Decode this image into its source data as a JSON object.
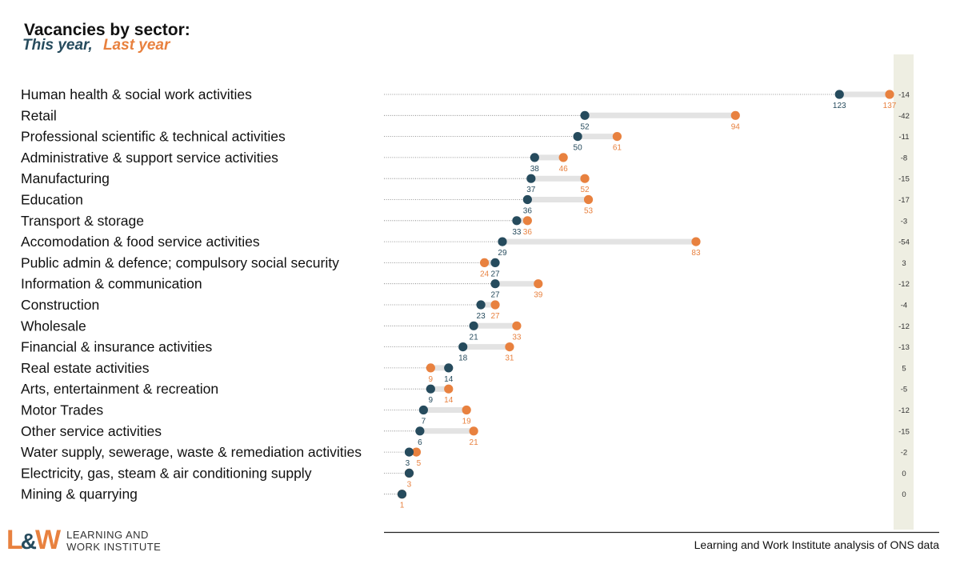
{
  "header": {
    "title": "Vacancies by sector:",
    "this_year": "This year,",
    "last_year": "Last year"
  },
  "colors": {
    "this_year": "#264b5d",
    "last_year": "#e8813f",
    "connector": "#e3e3e3",
    "diff_band": "#eeeee2"
  },
  "chart_data": {
    "type": "dumbbell",
    "title": "Vacancies by sector:",
    "series": [
      {
        "name": "This year",
        "values": [
          123,
          52,
          50,
          38,
          37,
          36,
          33,
          29,
          27,
          27,
          23,
          21,
          18,
          14,
          9,
          7,
          6,
          3,
          3,
          1
        ]
      },
      {
        "name": "Last year",
        "values": [
          137,
          94,
          61,
          46,
          52,
          53,
          36,
          83,
          24,
          39,
          27,
          33,
          31,
          9,
          14,
          19,
          21,
          5,
          3,
          1
        ]
      }
    ],
    "categories": [
      "Human health & social work activities",
      "Retail",
      "Professional scientific & technical activities",
      "Administrative & support service activities",
      "Manufacturing",
      "Education",
      "Transport & storage",
      "Accomodation & food service activities",
      "Public admin & defence; compulsory social security",
      "Information & communication",
      "Construction",
      "Wholesale",
      "Financial & insurance activities",
      "Real estate activities",
      "Arts, entertainment & recreation",
      "Motor Trades",
      "Other service activities",
      "Water supply, sewerage, waste & remediation activities",
      "Electricity, gas, steam & air conditioning supply",
      "Mining & quarrying"
    ],
    "this_labels": [
      "123",
      "52",
      "50",
      "38",
      "37",
      "36",
      "33",
      "29",
      "27",
      "27",
      "23",
      "21",
      "18",
      "14",
      "9",
      "7",
      "6",
      "3",
      "",
      ""
    ],
    "last_labels": [
      "137",
      "94",
      "61",
      "46",
      "52",
      "53",
      "36",
      "83",
      "24",
      "39",
      "27",
      "33",
      "31",
      "9",
      "14",
      "19",
      "21",
      "5",
      "3",
      "1"
    ],
    "differences": [
      "-14",
      "-42",
      "-11",
      "-8",
      "-15",
      "-17",
      "-3",
      "-54",
      "3",
      "-12",
      "-4",
      "-12",
      "-13",
      "5",
      "-5",
      "-12",
      "-15",
      "-2",
      "0",
      "0"
    ],
    "xlim": [
      0,
      140
    ]
  },
  "source": "Learning and Work Institute analysis of ONS data",
  "logo": {
    "mark_left": "L",
    "mark_amp": "&",
    "mark_right": "W",
    "line1": "LEARNING AND",
    "line2": "WORK INSTITUTE"
  }
}
